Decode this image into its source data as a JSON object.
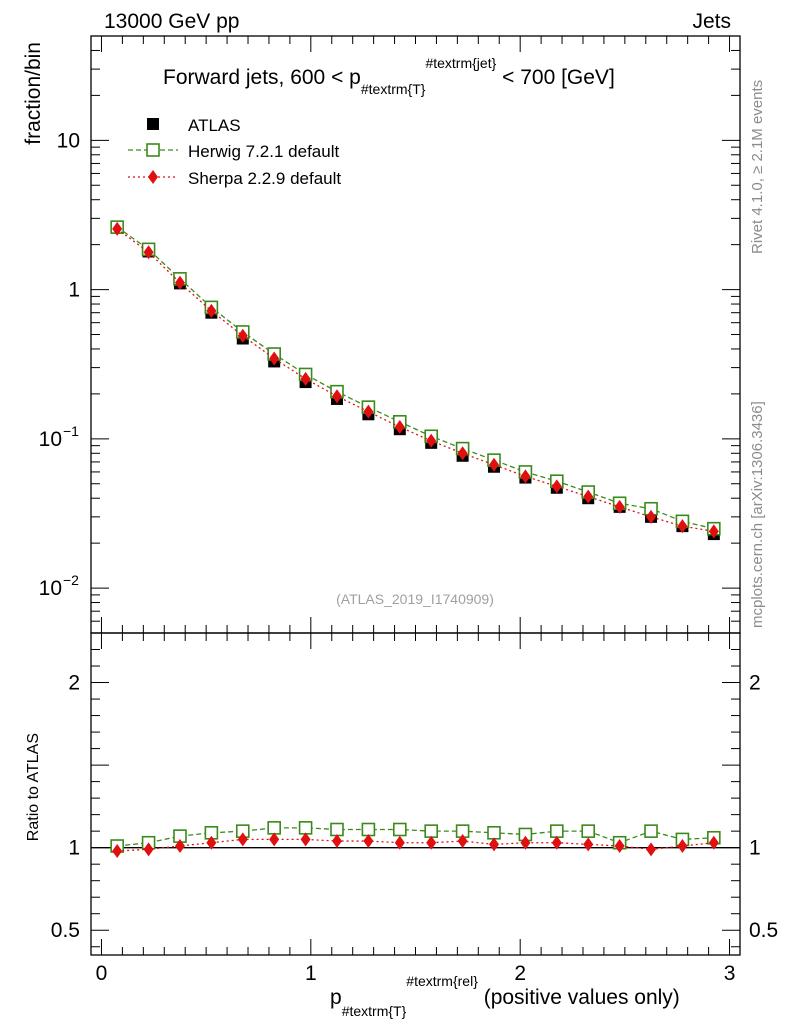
{
  "chart_data": {
    "type": "scatter",
    "header_left": "13000 GeV pp",
    "header_right": "Jets",
    "title": {
      "prefix": "Forward jets, 600 < p",
      "sub": "#textrm{T}",
      "sup": "#textrm{jet}",
      "suffix": " < 700 [GeV]"
    },
    "ylabel": "fraction/bin",
    "ratio_ylabel": "Ratio to ATLAS",
    "xlabel": {
      "base": "p",
      "sub": "#textrm{T}",
      "sup": "#textrm{rel}",
      "suffix": " (positive values only)"
    },
    "side_label_top": "Rivet 4.1.0, ≥ 2.1M events",
    "side_label_bottom": "mcplots.cern.ch [arXiv:1306.3436]",
    "watermark": "(ATLAS_2019_I1740909)",
    "xlim": [
      -0.05,
      3.05
    ],
    "ylim_main": [
      0.005,
      50
    ],
    "ylim_ratio": [
      0.35,
      2.3
    ],
    "main_y_ticks": [
      {
        "value": 10,
        "label": "10"
      },
      {
        "value": 1,
        "label": "1"
      },
      {
        "value": 0.1,
        "label": "10",
        "exp": "−1"
      },
      {
        "value": 0.01,
        "label": "10",
        "exp": "−2"
      }
    ],
    "ratio_y_ticks": [
      {
        "value": 0.5,
        "label": "0.5"
      },
      {
        "value": 1,
        "label": "1"
      },
      {
        "value": 2,
        "label": "2"
      }
    ],
    "x_ticks": [
      {
        "value": 0,
        "label": "0"
      },
      {
        "value": 1,
        "label": "1"
      },
      {
        "value": 2,
        "label": "2"
      },
      {
        "value": 3,
        "label": "3"
      }
    ],
    "x": [
      0.075,
      0.225,
      0.375,
      0.525,
      0.675,
      0.825,
      0.975,
      1.125,
      1.275,
      1.425,
      1.575,
      1.725,
      1.875,
      2.025,
      2.175,
      2.325,
      2.475,
      2.625,
      2.775,
      2.925
    ],
    "series": [
      {
        "name": "ATLAS",
        "style": "data",
        "color": "#000000",
        "values": [
          2.6,
          1.8,
          1.1,
          0.7,
          0.47,
          0.33,
          0.24,
          0.185,
          0.146,
          0.116,
          0.094,
          0.077,
          0.065,
          0.055,
          0.047,
          0.04,
          0.035,
          0.03,
          0.026,
          0.023
        ],
        "ratio": [
          1,
          1,
          1,
          1,
          1,
          1,
          1,
          1,
          1,
          1,
          1,
          1,
          1,
          1,
          1,
          1,
          1,
          1,
          1,
          1
        ]
      },
      {
        "name": "Herwig 7.2.1 default",
        "style": "open-square-dashed",
        "color": "#3a8a1a",
        "values": [
          2.62,
          1.86,
          1.18,
          0.76,
          0.52,
          0.37,
          0.27,
          0.207,
          0.163,
          0.13,
          0.104,
          0.086,
          0.072,
          0.06,
          0.052,
          0.044,
          0.037,
          0.034,
          0.028,
          0.025
        ],
        "ratio": [
          1.01,
          1.03,
          1.07,
          1.09,
          1.1,
          1.12,
          1.12,
          1.11,
          1.11,
          1.11,
          1.1,
          1.1,
          1.09,
          1.08,
          1.1,
          1.1,
          1.03,
          1.1,
          1.05,
          1.06
        ]
      },
      {
        "name": "Sherpa 2.2.9 default",
        "style": "diamond-dotted",
        "color": "#e01010",
        "values": [
          2.55,
          1.78,
          1.11,
          0.72,
          0.49,
          0.345,
          0.252,
          0.193,
          0.152,
          0.12,
          0.097,
          0.08,
          0.067,
          0.056,
          0.048,
          0.041,
          0.035,
          0.03,
          0.026,
          0.024
        ],
        "ratio": [
          0.98,
          0.99,
          1.01,
          1.03,
          1.05,
          1.05,
          1.05,
          1.04,
          1.04,
          1.03,
          1.03,
          1.04,
          1.02,
          1.03,
          1.03,
          1.02,
          1.01,
          0.99,
          1.01,
          1.03
        ]
      }
    ]
  }
}
